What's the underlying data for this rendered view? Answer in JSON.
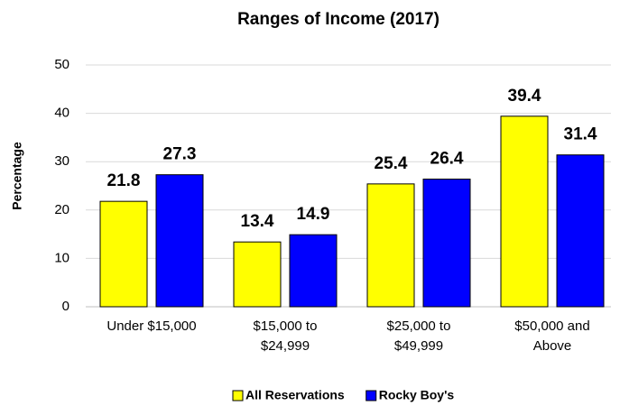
{
  "chart_data": {
    "type": "bar",
    "title": "Ranges of Income (2017)",
    "ylabel": "Percentage",
    "categories": [
      "Under $15,000",
      "$15,000 to\n$24,999",
      "$25,000 to\n$49,999",
      "$50,000 and\nAbove"
    ],
    "series": [
      {
        "name": "All Reservations",
        "color": "#ffff00",
        "values": [
          21.8,
          13.4,
          25.4,
          39.4
        ]
      },
      {
        "name": "Rocky Boy's",
        "color": "#0000ff",
        "values": [
          27.3,
          14.9,
          26.4,
          31.4
        ]
      }
    ],
    "ylim": [
      0,
      50
    ],
    "yticks": [
      0,
      10,
      20,
      30,
      40,
      50
    ],
    "grid": true,
    "legend": "bottom"
  }
}
